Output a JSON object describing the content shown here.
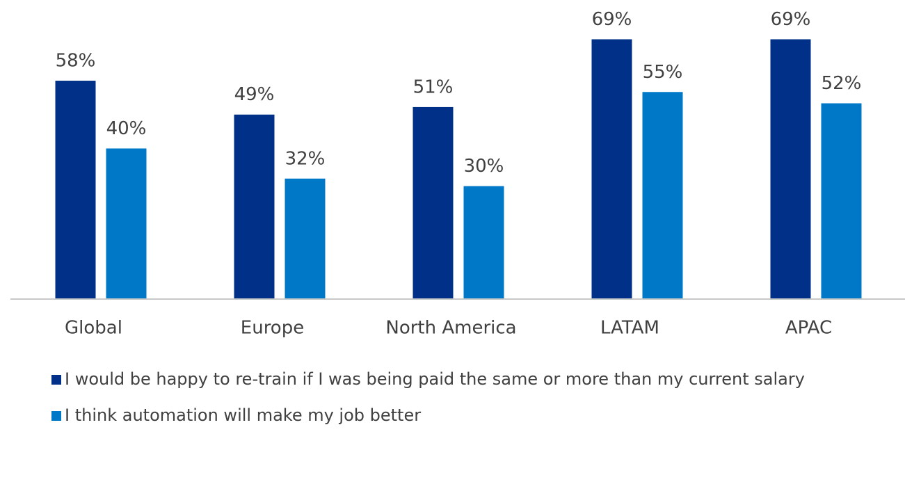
{
  "chart_data": {
    "type": "bar",
    "categories": [
      "Global",
      "Europe",
      "North America",
      "LATAM",
      "APAC"
    ],
    "series": [
      {
        "name": "I would be happy to re-train if I was being paid the same or more than my current salary",
        "color": "#003087",
        "values": [
          58,
          49,
          51,
          69,
          69
        ],
        "value_labels": [
          "58%",
          "49%",
          "51%",
          "69%",
          "69%"
        ]
      },
      {
        "name": "I think automation will make my job better",
        "color": "#0078c8",
        "values": [
          40,
          32,
          30,
          55,
          52
        ],
        "value_labels": [
          "40%",
          "32%",
          "30%",
          "55%",
          "52%"
        ]
      }
    ],
    "ylim": [
      0,
      75
    ],
    "legend": "bottom"
  }
}
